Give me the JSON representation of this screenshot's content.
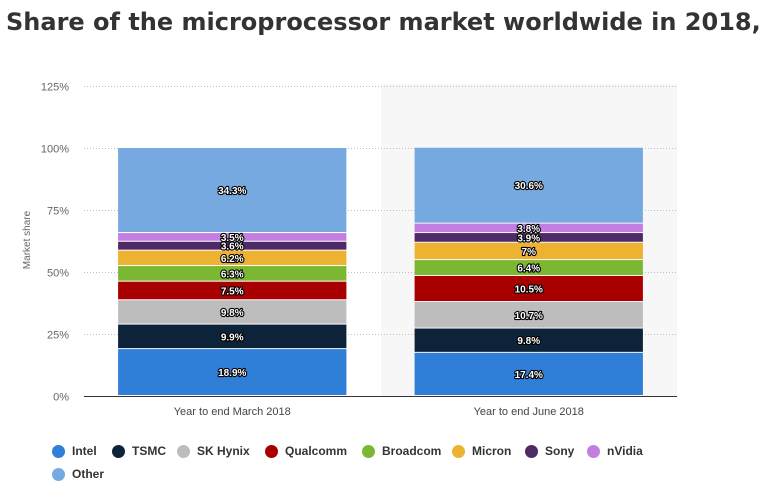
{
  "title": "Share of the microprocessor market worldwide in 2018,",
  "chart_data": {
    "type": "bar",
    "stacked": true,
    "title": "Share of the microprocessor market worldwide in 2018,",
    "xlabel": "",
    "ylabel": "Market share",
    "ylim": [
      0,
      125
    ],
    "yticks": [
      "0%",
      "25%",
      "50%",
      "75%",
      "100%",
      "125%"
    ],
    "grid": true,
    "legend_position": "bottom",
    "categories": [
      "Year to end March 2018",
      "Year to end June 2018"
    ],
    "series": [
      {
        "name": "Intel",
        "color": "#2f7ed8",
        "values": [
          18.9,
          17.4
        ],
        "labels": [
          "18.9%",
          "17.4%"
        ]
      },
      {
        "name": "TSMC",
        "color": "#0d233a",
        "values": [
          9.9,
          9.8
        ],
        "labels": [
          "9.9%",
          "9.8%"
        ]
      },
      {
        "name": "SK Hynix",
        "color": "#bdbdbd",
        "values": [
          9.8,
          10.7
        ],
        "labels": [
          "9.8%",
          "10.7%"
        ]
      },
      {
        "name": "Qualcomm",
        "color": "#a80000",
        "values": [
          7.5,
          10.5
        ],
        "labels": [
          "7.5%",
          "10.5%"
        ]
      },
      {
        "name": "Broadcom",
        "color": "#7cb733",
        "values": [
          6.3,
          6.4
        ],
        "labels": [
          "6.3%",
          "6.4%"
        ]
      },
      {
        "name": "Micron",
        "color": "#edb232",
        "values": [
          6.2,
          7
        ],
        "labels": [
          "6.2%",
          "7%"
        ]
      },
      {
        "name": "Sony",
        "color": "#4e2a66",
        "values": [
          3.6,
          3.9
        ],
        "labels": [
          "3.6%",
          "3.9%"
        ]
      },
      {
        "name": "nVidia",
        "color": "#c27ee0",
        "values": [
          3.5,
          3.8
        ],
        "labels": [
          "3.5%",
          "3.8%"
        ]
      },
      {
        "name": "Other",
        "color": "#76a9e0",
        "values": [
          34.3,
          30.6
        ],
        "labels": [
          "34.3%",
          "30.6%"
        ]
      }
    ]
  }
}
